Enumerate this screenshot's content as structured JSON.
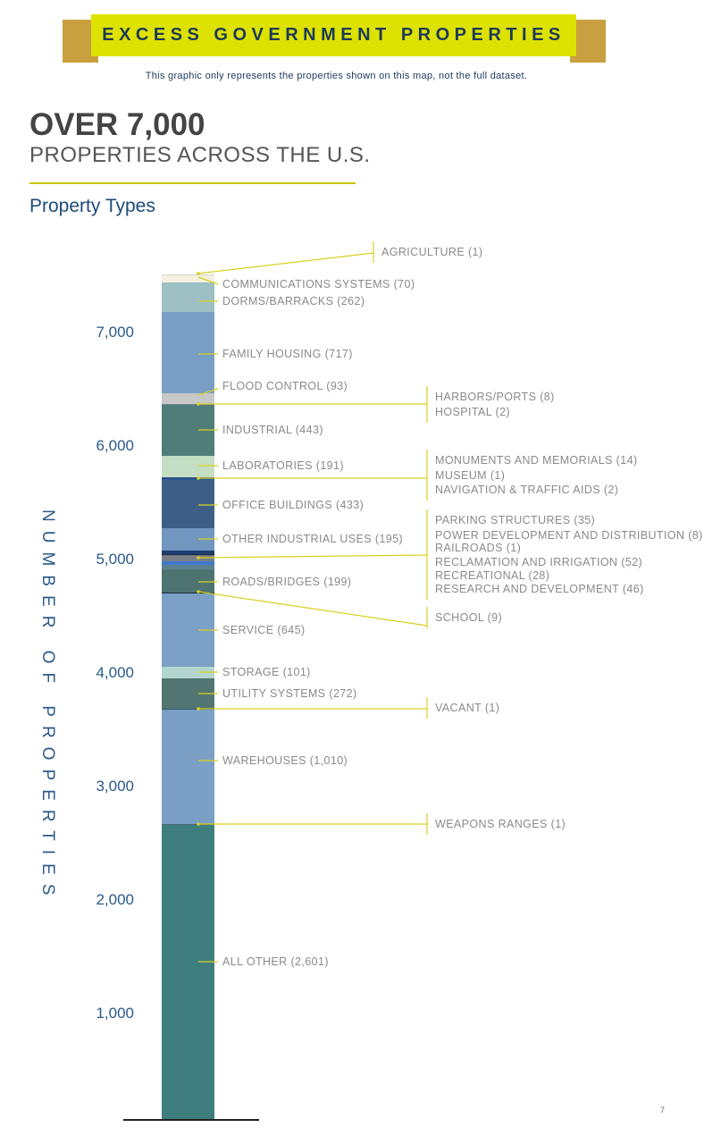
{
  "header": {
    "banner_title": "EXCESS GOVERNMENT PROPERTIES",
    "subtitle": "This graphic only represents the properties shown on this map, not the full dataset.",
    "headline": "OVER 7,000",
    "subheadline": "PROPERTIES ACROSS THE U.S.",
    "section_title": "Property Types",
    "banner_color": "#dde200",
    "ribbon_color": "#c9a040"
  },
  "page_number": "7",
  "chart_data": {
    "type": "bar",
    "stacked": true,
    "title": "Property Types",
    "ylabel": "NUMBER OF PROPERTIES",
    "xlabel": "",
    "ylim": [
      0,
      7441
    ],
    "yticks": [
      1000,
      2000,
      3000,
      4000,
      5000,
      6000,
      7000
    ],
    "ytick_labels": [
      "1,000",
      "2,000",
      "3,000",
      "4,000",
      "5,000",
      "6,000",
      "7,000"
    ],
    "series_bottom_to_top": [
      {
        "name": "ALL OTHER",
        "value": 2601,
        "color": "#3f7e7e"
      },
      {
        "name": "WEAPONS RANGES",
        "value": 1,
        "color": "#486a70"
      },
      {
        "name": "WAREHOUSES",
        "value": 1010,
        "color": "#7b9fc5"
      },
      {
        "name": "VACANT",
        "value": 1,
        "color": "#2a5a70"
      },
      {
        "name": "UTILITY SYSTEMS",
        "value": 272,
        "color": "#537571"
      },
      {
        "name": "STORAGE",
        "value": 101,
        "color": "#b3d6d0"
      },
      {
        "name": "SERVICE",
        "value": 645,
        "color": "#7da0c6"
      },
      {
        "name": "SCHOOL",
        "value": 9,
        "color": "#0e2a40"
      },
      {
        "name": "ROADS/BRIDGES",
        "value": 199,
        "color": "#4d7470"
      },
      {
        "name": "RESEARCH AND DEVELOPMENT",
        "value": 46,
        "color": "#5a8090"
      },
      {
        "name": "RECREATIONAL",
        "value": 28,
        "color": "#3f7acc"
      },
      {
        "name": "RECLAMATION AND IRRIGATION",
        "value": 52,
        "color": "#7a7f88"
      },
      {
        "name": "RAILROADS",
        "value": 1,
        "color": "#777777"
      },
      {
        "name": "POWER DEVELOPMENT AND DISTRIBUTION",
        "value": 8,
        "color": "#0e2a50"
      },
      {
        "name": "PARKING STRUCTURES",
        "value": 35,
        "color": "#1e3f6f"
      },
      {
        "name": "OTHER INDUSTRIAL USES",
        "value": 195,
        "color": "#7196c0"
      },
      {
        "name": "OFFICE BUILDINGS",
        "value": 433,
        "color": "#3e5f85"
      },
      {
        "name": "NAVIGATION & TRAFFIC AIDS",
        "value": 2,
        "color": "#2a5a9a"
      },
      {
        "name": "MUSEUM",
        "value": 1,
        "color": "#2a5a9a"
      },
      {
        "name": "MONUMENTS AND MEMORIALS",
        "value": 14,
        "color": "#2d4f80"
      },
      {
        "name": "LABORATORIES",
        "value": 191,
        "color": "#c5dfc5"
      },
      {
        "name": "INDUSTRIAL",
        "value": 443,
        "color": "#4f7d7a"
      },
      {
        "name": "HOSPITAL",
        "value": 2,
        "color": "#5a7a80"
      },
      {
        "name": "HARBORS/PORTS",
        "value": 8,
        "color": "#6a8a90"
      },
      {
        "name": "FLOOD CONTROL",
        "value": 93,
        "color": "#c8c8c8"
      },
      {
        "name": "FAMILY HOUSING",
        "value": 717,
        "color": "#7a9fc4"
      },
      {
        "name": "DORMS/BARRACKS",
        "value": 262,
        "color": "#9ec0c4"
      },
      {
        "name": "COMMUNICATIONS SYSTEMS",
        "value": 70,
        "color": "#f3f0e0"
      },
      {
        "name": "AGRICULTURE",
        "value": 1,
        "color": "#d8d8c0"
      }
    ],
    "grid": false,
    "legend": "none",
    "annotation_color": "#d8d020"
  }
}
